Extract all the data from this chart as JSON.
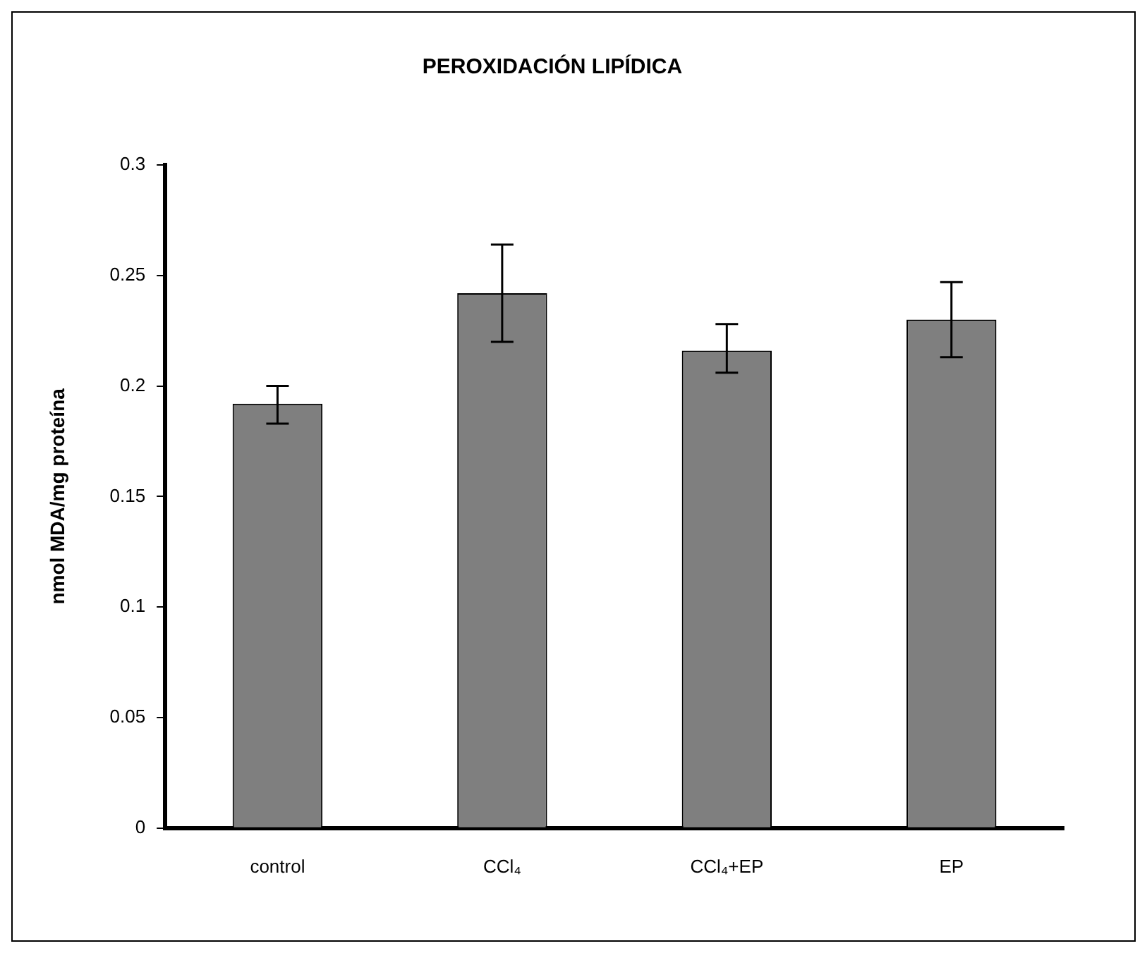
{
  "chart_data": {
    "type": "bar",
    "title": "PEROXIDACIÓN LIPÍDICA",
    "ylabel": "nmol MDA/mg proteína",
    "categories": [
      "control",
      "CCl₄",
      "CCl₄+EP",
      "EP"
    ],
    "values": [
      0.192,
      0.242,
      0.216,
      0.23
    ],
    "errors": [
      [
        0.183,
        0.2
      ],
      [
        0.22,
        0.264
      ],
      [
        0.206,
        0.228
      ],
      [
        0.213,
        0.247
      ]
    ],
    "color": "#7f7f7f",
    "ylim": [
      0,
      0.3
    ],
    "yticks": [
      0,
      0.05,
      0.1,
      0.15,
      0.2,
      0.25,
      0.3
    ],
    "grid": false,
    "legend": false
  }
}
